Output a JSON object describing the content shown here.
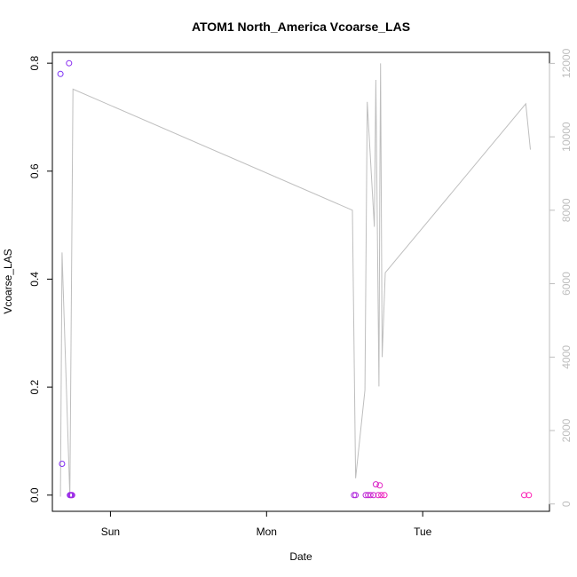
{
  "chart_data": {
    "type": "scatter",
    "title": "ATOM1 North_America Vcoarse_LAS",
    "xlabel": "Date",
    "ylabel": "Vcoarse_LAS",
    "x_ticks": [
      "Sun",
      "Mon",
      "Tue"
    ],
    "x_tick_days": [
      1,
      2,
      3
    ],
    "xlim_days": [
      0.628,
      3.812
    ],
    "ylim": [
      -0.03,
      0.82
    ],
    "y_ticks": [
      0.0,
      0.2,
      0.4,
      0.6,
      0.8
    ],
    "y2lim": [
      -200,
      12300
    ],
    "y2_ticks": [
      0,
      2000,
      4000,
      6000,
      8000,
      10000,
      12000
    ],
    "grid": false,
    "colors": {
      "line_series": "#bebebe",
      "axis": "#000000",
      "right_axis": "#bebebe",
      "point_gradient_start": "#7b2ff7",
      "point_gradient_end": "#ff1fb4"
    },
    "series": [
      {
        "type": "scatter",
        "axis": "left",
        "x_days": [
          0.68,
          0.69,
          0.735,
          0.74,
          0.745,
          0.75,
          0.755,
          2.56,
          2.57,
          2.635,
          2.65,
          2.665,
          2.685,
          2.7,
          2.715,
          2.725,
          2.735,
          2.755,
          3.65,
          3.68
        ],
        "values": [
          0.78,
          0.058,
          0.8,
          0.0,
          0.0,
          0.0,
          0.0,
          0.0,
          0.0,
          0.0,
          0.0,
          0.0,
          0.0,
          0.02,
          0.0,
          0.018,
          0.0,
          0.0,
          0.0,
          0.0
        ]
      },
      {
        "type": "line",
        "axis": "right",
        "x_days": [
          0.68,
          0.69,
          0.74,
          0.76,
          2.55,
          2.57,
          2.63,
          2.645,
          2.69,
          2.7,
          2.72,
          2.725,
          2.73,
          2.74,
          2.76,
          3.66,
          3.69
        ],
        "values": [
          200,
          6850,
          200,
          11300,
          8000,
          700,
          3100,
          10950,
          7550,
          11550,
          3200,
          8300,
          12000,
          4000,
          6300,
          10900,
          9650
        ]
      }
    ]
  }
}
